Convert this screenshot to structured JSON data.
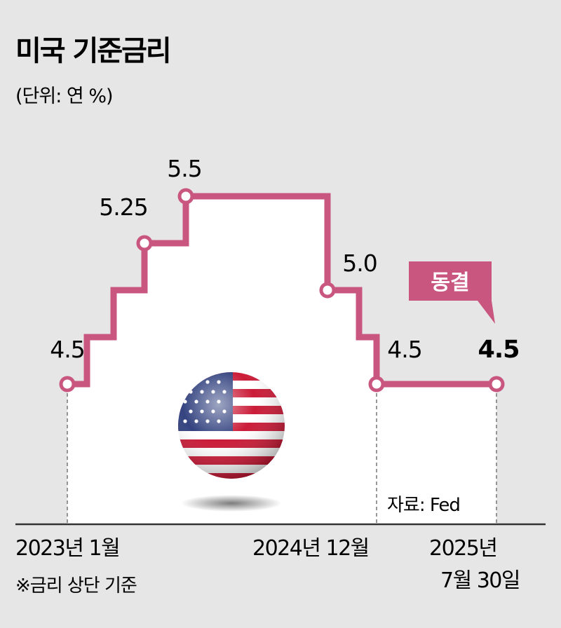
{
  "title": "미국 기준금리",
  "unit_label": "(단위: 연 %)",
  "source": "자료: Fed",
  "footnote": "※금리 상단 기준",
  "callout": "동결",
  "colors": {
    "line": "#c9567f",
    "area": "#ffffff",
    "background": "#e6e6e6",
    "text": "#1a1a1a"
  },
  "icon": "us-flag-sphere-icon",
  "chart_data": {
    "type": "line",
    "step": true,
    "series": [
      {
        "values": [
          4.5,
          4.75,
          5.0,
          5.25,
          5.5,
          5.0,
          4.75,
          4.5,
          4.5
        ],
        "highlighted_labels": [
          "4.5",
          "5.25",
          "5.5",
          "5.0",
          "4.5",
          "4.5"
        ]
      }
    ],
    "x_ticks": [
      {
        "label": "2023년 1월"
      },
      {
        "label": "2024년 12월"
      },
      {
        "label": "2025년",
        "label2": "7월 30일"
      }
    ],
    "grid": false,
    "legend": "none"
  }
}
